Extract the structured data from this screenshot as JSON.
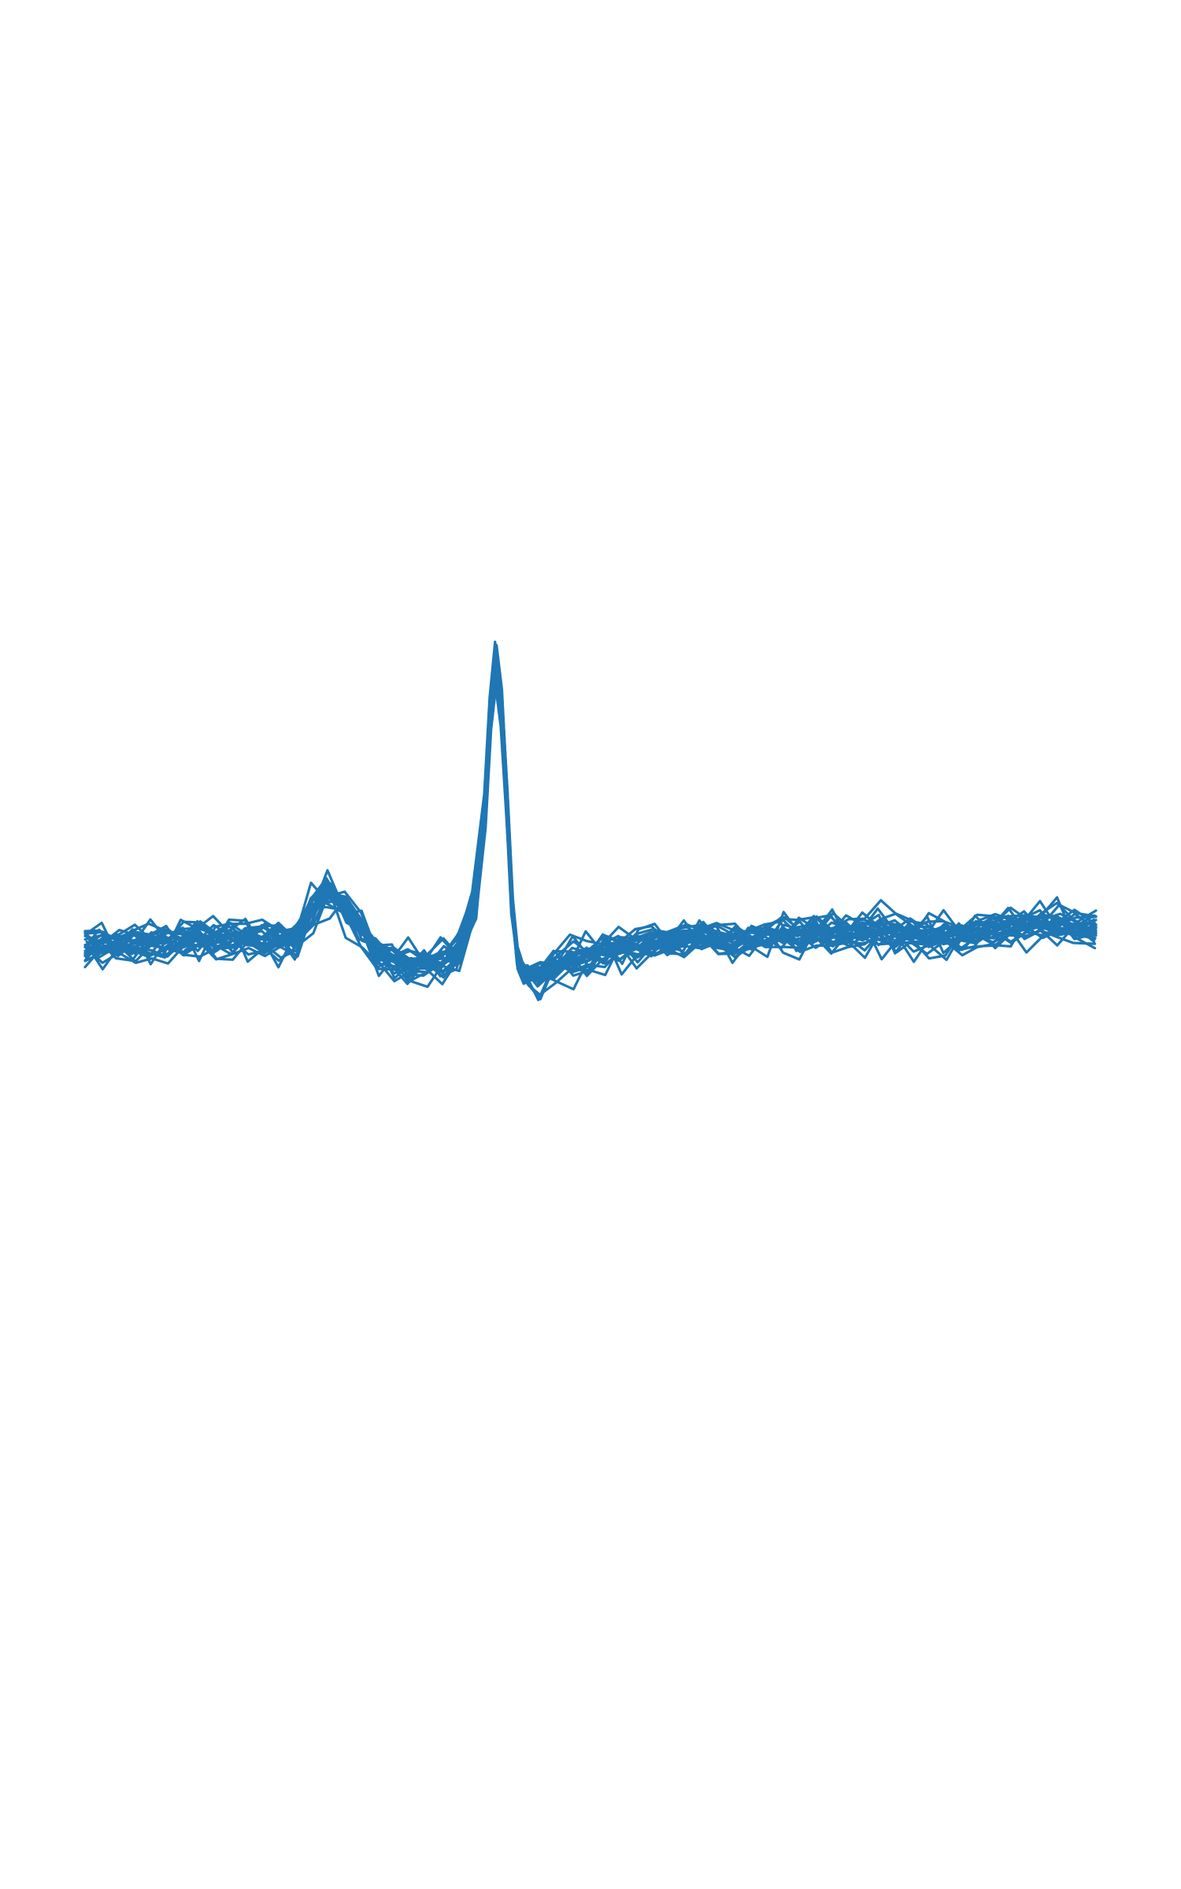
{
  "chart_data": {
    "type": "line",
    "title": "",
    "xlabel": "",
    "ylabel": "",
    "axes_visible": false,
    "grid": false,
    "legend": "none",
    "series_color": "#1f77b4",
    "series_count": 28,
    "xlim": [
      0,
      187
    ],
    "ylim": [
      -8,
      8
    ],
    "x": [
      0,
      3,
      6,
      9,
      12,
      15,
      18,
      21,
      24,
      27,
      30,
      33,
      36,
      39,
      42,
      45,
      48,
      51,
      54,
      57,
      60,
      63,
      66,
      69,
      72,
      74,
      75,
      76,
      77,
      78,
      79,
      80,
      81,
      82,
      84,
      87,
      90,
      93,
      96,
      99,
      102,
      105,
      108,
      111,
      114,
      117,
      120,
      123,
      126,
      129,
      132,
      135,
      138,
      141,
      144,
      147,
      150,
      153,
      156,
      159,
      162,
      165,
      168,
      171,
      174,
      177,
      180,
      183,
      187
    ],
    "mean_beat": [
      0.02,
      0.05,
      0.02,
      0.06,
      0.1,
      0.12,
      0.1,
      0.16,
      0.15,
      0.2,
      0.18,
      0.22,
      0.12,
      0.1,
      0.95,
      1.35,
      0.95,
      0.4,
      -0.2,
      -0.35,
      -0.45,
      -0.4,
      -0.3,
      -0.15,
      1.1,
      3.6,
      6.0,
      7.3,
      6.2,
      3.8,
      1.1,
      -0.35,
      -0.65,
      -0.75,
      -0.8,
      -0.6,
      -0.4,
      -0.35,
      -0.2,
      -0.1,
      0.0,
      0.1,
      0.15,
      0.22,
      0.25,
      0.15,
      0.1,
      0.2,
      0.25,
      0.28,
      0.22,
      0.3,
      0.25,
      0.32,
      0.28,
      0.35,
      0.3,
      0.38,
      0.25,
      0.3,
      0.28,
      0.35,
      0.4,
      0.48,
      0.52,
      0.6,
      0.55,
      0.48,
      0.45
    ],
    "noise_std": 0.22
  }
}
